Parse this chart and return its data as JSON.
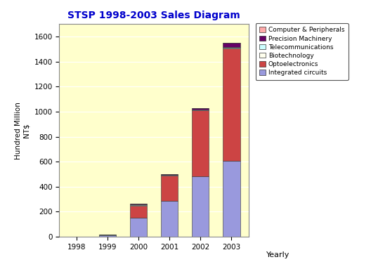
{
  "title": "STSP 1998-2003 Sales Diagram",
  "years": [
    "1998",
    "1999",
    "2000",
    "2001",
    "2002",
    "2003"
  ],
  "categories": [
    "Integrated circuits",
    "Optoelectronics",
    "Biotechnology",
    "Telecommunications",
    "Precision Machinery",
    "Computer & Peripherals"
  ],
  "values": [
    [
      0.69,
      11.41,
      151.23,
      287.44,
      485.41,
      608.99
    ],
    [
      0.0,
      0.47,
      98.85,
      199.52,
      523.36,
      897.18
    ],
    [
      0.0,
      0.1,
      0.73,
      1.51,
      2.45,
      5.29
    ],
    [
      0.46,
      3.06,
      10.18,
      5.54,
      3.73,
      6.63
    ],
    [
      0.0,
      0.8,
      3.3,
      7.84,
      16.13,
      32.71
    ],
    [
      0.0,
      0.0,
      0.0,
      0.0,
      0.0,
      1.08
    ]
  ],
  "colors": [
    "#9999DD",
    "#CC4444",
    "#FFFFEE",
    "#CCFFFF",
    "#660066",
    "#FFAAAA"
  ],
  "ylabel": "Hundred Million\nNT$",
  "xlabel": "Yearly",
  "ylim": [
    0,
    1700
  ],
  "yticks": [
    0,
    200,
    400,
    600,
    800,
    1000,
    1200,
    1400,
    1600
  ],
  "bg_color": "#FFFFCC",
  "outer_bg": "#FFFFFF",
  "title_color": "#0000CC",
  "title_fontsize": 10,
  "legend_order": [
    5,
    4,
    3,
    2,
    1,
    0
  ]
}
